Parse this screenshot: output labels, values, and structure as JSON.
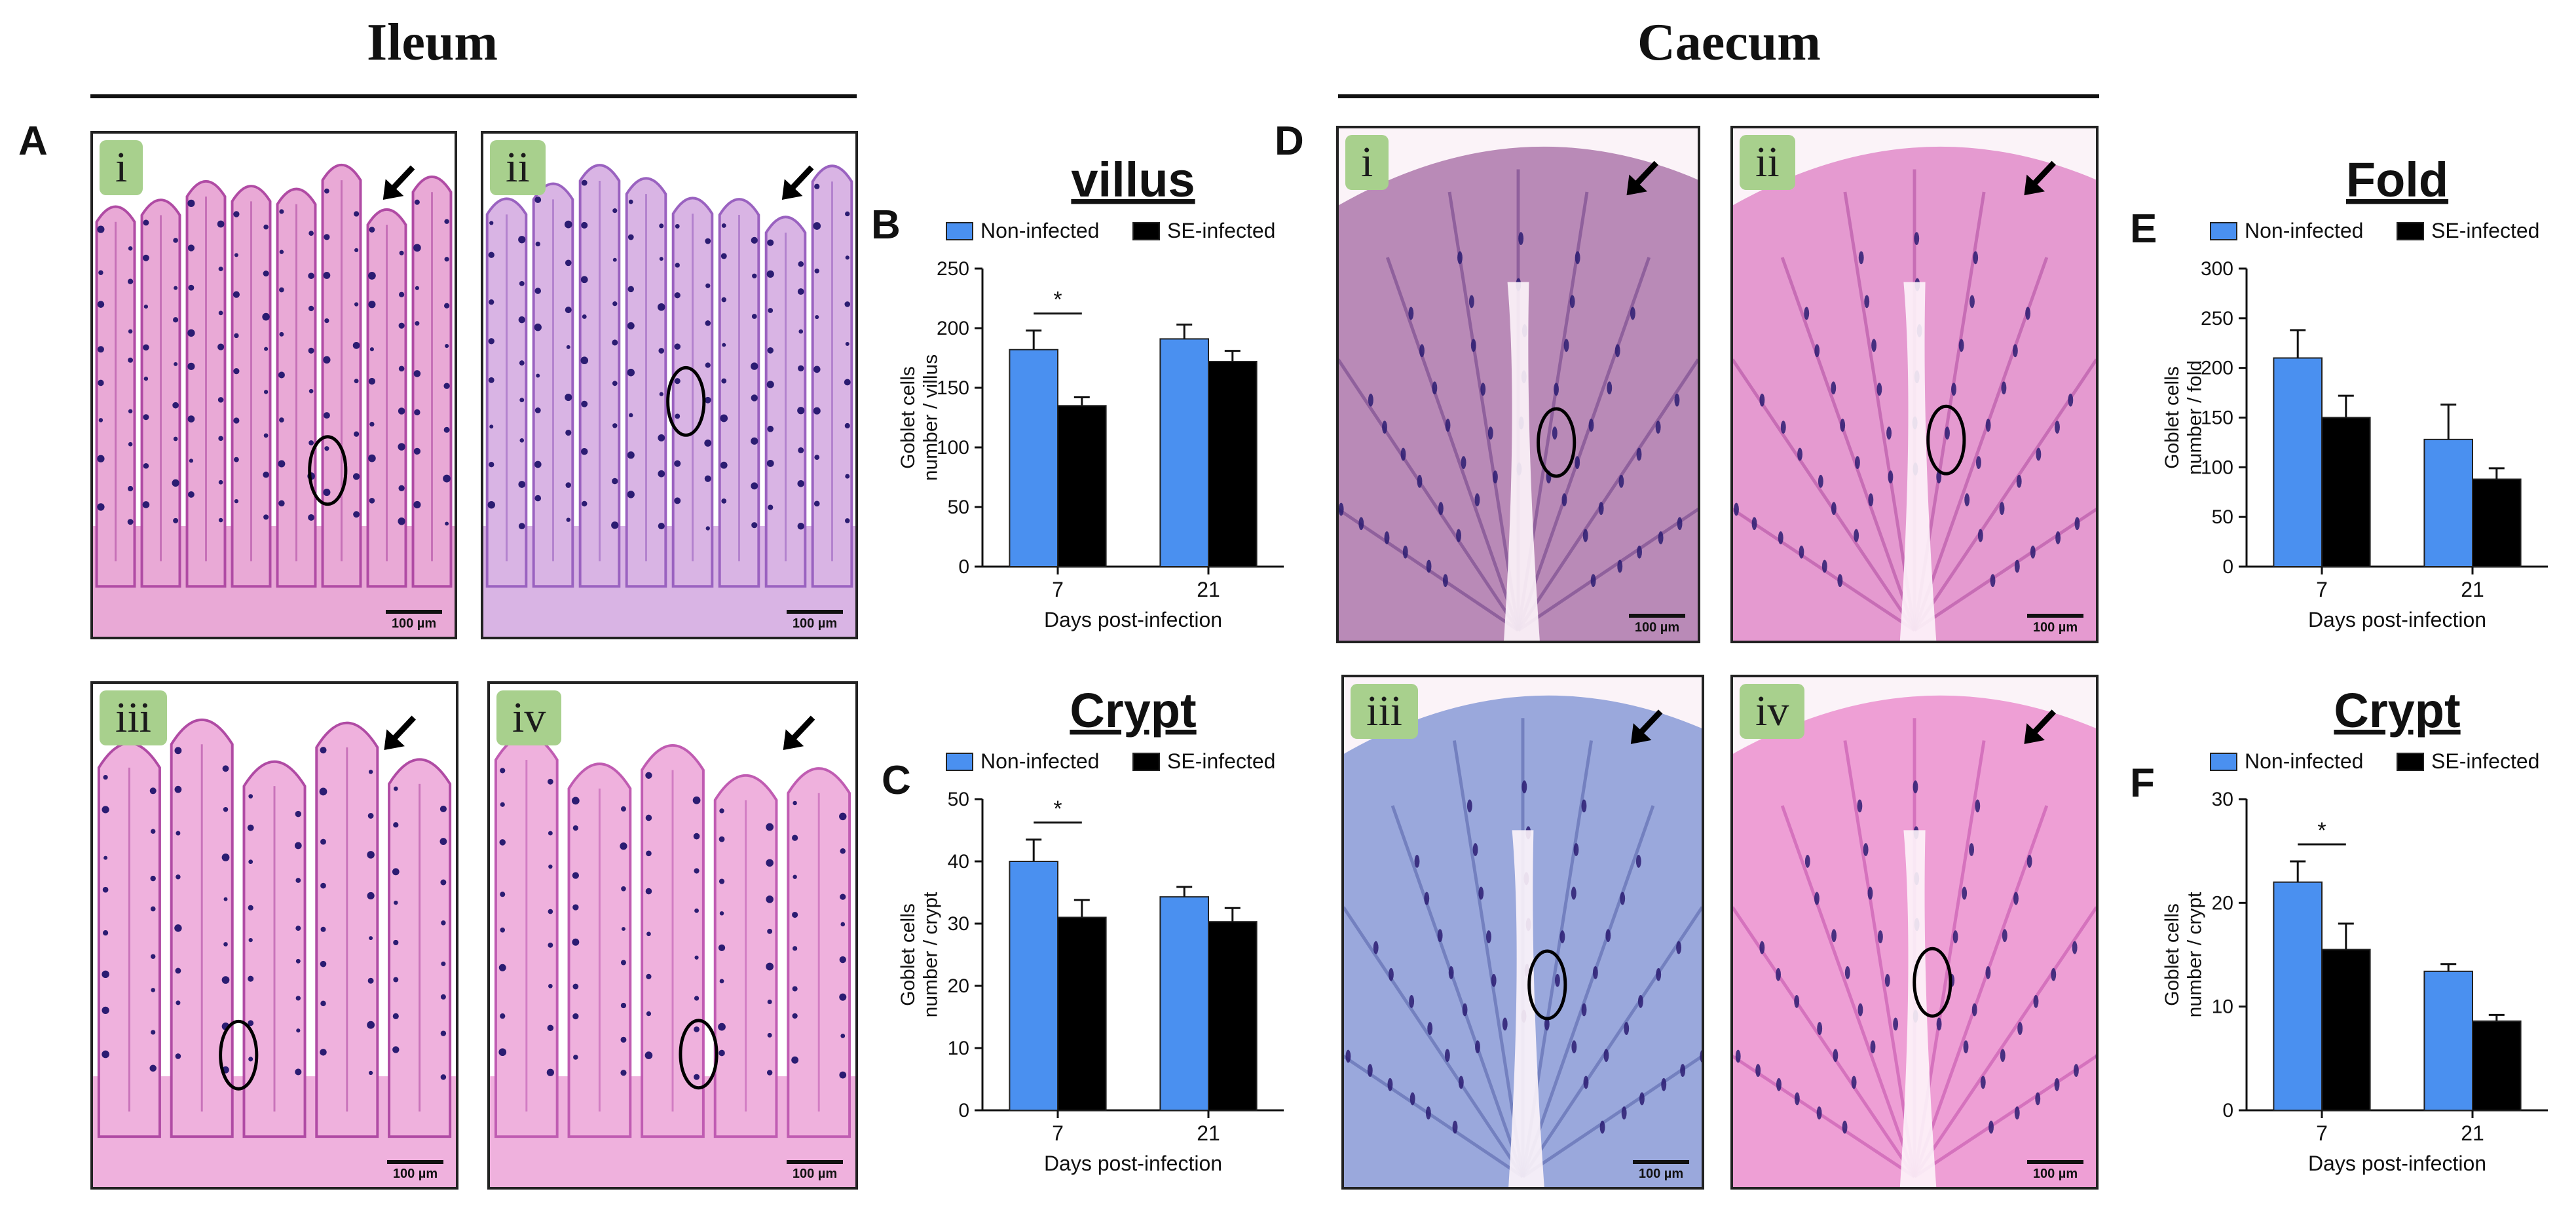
{
  "colors": {
    "non_infected": "#4a90f0",
    "se_infected": "#000000",
    "he_stain_light": "#e9a9d6",
    "he_stain_dark": "#b04ba4",
    "goblet": "#2b1c72",
    "ab_stain": "#9aa8dc"
  },
  "sections": [
    {
      "id": "ileum",
      "title": "Ileum"
    },
    {
      "id": "caecum",
      "title": "Caecum"
    }
  ],
  "panels": {
    "A": {
      "letter": "A",
      "images": [
        {
          "tag": "i",
          "scale": "100 µm"
        },
        {
          "tag": "ii",
          "scale": "100 µm"
        },
        {
          "tag": "iii",
          "scale": "100 µm"
        },
        {
          "tag": "iv",
          "scale": "100 µm"
        }
      ]
    },
    "D": {
      "letter": "D",
      "images": [
        {
          "tag": "i",
          "scale": "100 µm"
        },
        {
          "tag": "ii",
          "scale": "100 µm"
        },
        {
          "tag": "iii",
          "scale": "100 µm"
        },
        {
          "tag": "iv",
          "scale": "100 µm"
        }
      ]
    }
  },
  "chart_data": [
    {
      "panel": "B",
      "type": "bar",
      "title": "villus",
      "categories": [
        "7",
        "21"
      ],
      "series": [
        {
          "name": "Non-infected",
          "values": [
            182,
            191
          ],
          "errors": [
            16,
            12
          ]
        },
        {
          "name": "SE-infected",
          "values": [
            135,
            172
          ],
          "errors": [
            7,
            9
          ]
        }
      ],
      "xlabel": "Days post-infection",
      "ylabel": "Goblet cells number / villus",
      "ylim": [
        0,
        250
      ],
      "yticks": [
        "0",
        "50",
        "100",
        "150",
        "200",
        "250"
      ],
      "significance": {
        "category": "7",
        "label": "*"
      },
      "legend": "top"
    },
    {
      "panel": "C",
      "type": "bar",
      "title": "Crypt",
      "categories": [
        "7",
        "21"
      ],
      "series": [
        {
          "name": "Non-infected",
          "values": [
            40,
            34.3
          ],
          "errors": [
            3.5,
            1.6
          ]
        },
        {
          "name": "SE-infected",
          "values": [
            31,
            30.3
          ],
          "errors": [
            2.8,
            2.2
          ]
        }
      ],
      "xlabel": "Days post-infection",
      "ylabel": "Goblet cells number / crypt",
      "ylim": [
        0,
        50
      ],
      "yticks": [
        "0",
        "10",
        "20",
        "30",
        "40",
        "50"
      ],
      "significance": {
        "category": "7",
        "label": "*"
      },
      "legend": "top"
    },
    {
      "panel": "E",
      "type": "bar",
      "title": "Fold",
      "categories": [
        "7",
        "21"
      ],
      "series": [
        {
          "name": "Non-infected",
          "values": [
            210,
            128
          ],
          "errors": [
            28,
            35
          ]
        },
        {
          "name": "SE-infected",
          "values": [
            150,
            88
          ],
          "errors": [
            22,
            11
          ]
        }
      ],
      "xlabel": "Days post-infection",
      "ylabel": "Goblet cells number / fold",
      "ylim": [
        0,
        300
      ],
      "yticks": [
        "0",
        "50",
        "100",
        "150",
        "200",
        "250",
        "300"
      ],
      "significance": null,
      "legend": "top"
    },
    {
      "panel": "F",
      "type": "bar",
      "title": "Crypt",
      "categories": [
        "7",
        "21"
      ],
      "series": [
        {
          "name": "Non-infected",
          "values": [
            22,
            13.4
          ],
          "errors": [
            2,
            0.7
          ]
        },
        {
          "name": "SE-infected",
          "values": [
            15.5,
            8.6
          ],
          "errors": [
            2.5,
            0.6
          ]
        }
      ],
      "xlabel": "Days post-infection",
      "ylabel": "Goblet cells number / crypt",
      "ylim": [
        0,
        30
      ],
      "yticks": [
        "0",
        "10",
        "20",
        "30"
      ],
      "significance": {
        "category": "7",
        "label": "*"
      },
      "legend": "top"
    }
  ]
}
